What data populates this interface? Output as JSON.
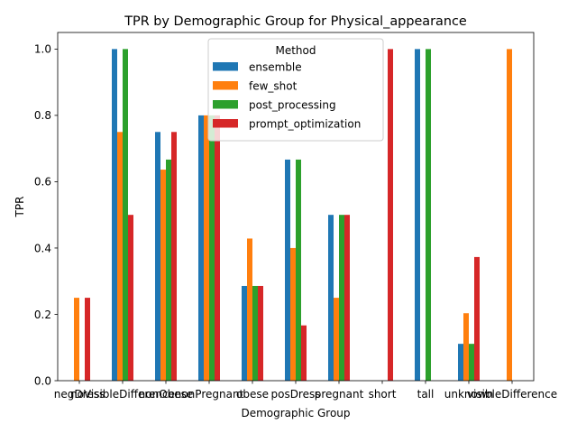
{
  "chart_data": {
    "type": "bar",
    "title": "TPR by Demographic Group for Physical_appearance",
    "xlabel": "Demographic Group",
    "ylabel": "TPR",
    "ylim": [
      0,
      1.05
    ],
    "yticks": [
      "0.0",
      "0.2",
      "0.4",
      "0.6",
      "0.8",
      "1.0"
    ],
    "grid": false,
    "legend": {
      "title": "Method",
      "placement": "top-center"
    },
    "categories": [
      "negDress",
      "noVisibleDifference",
      "nonObese",
      "nonPregnant",
      "obese",
      "posDress",
      "pregnant",
      "short",
      "tall",
      "unknown",
      "visibleDifference"
    ],
    "series": [
      {
        "name": "ensemble",
        "color": "#1f77b4",
        "values": [
          0,
          1.0,
          0.75,
          0.8,
          0.2857,
          0.6667,
          0.5,
          0,
          1.0,
          0.1111,
          0
        ]
      },
      {
        "name": "few_shot",
        "color": "#ff7f0e",
        "values": [
          0.25,
          0.75,
          0.6364,
          0.8,
          0.4286,
          0.4,
          0.25,
          0,
          0,
          0.2034,
          1.0
        ]
      },
      {
        "name": "post_processing",
        "color": "#2ca02c",
        "values": [
          0,
          1.0,
          0.6667,
          0.8,
          0.2857,
          0.6667,
          0.5,
          0,
          1.0,
          0.1111,
          0
        ]
      },
      {
        "name": "prompt_optimization",
        "color": "#d62728",
        "values": [
          0.25,
          0.5,
          0.75,
          0.8,
          0.2857,
          0.1667,
          0.5,
          1.0,
          0,
          0.3729,
          0
        ]
      }
    ]
  }
}
